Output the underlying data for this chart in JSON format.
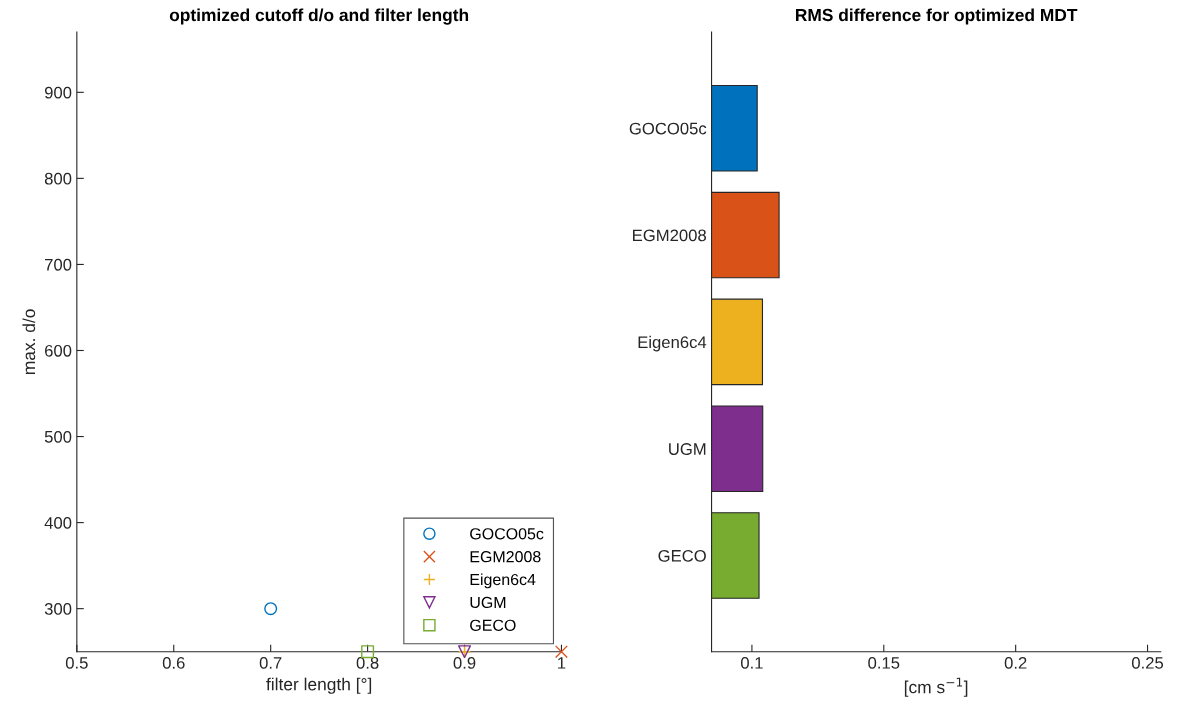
{
  "chart_data": [
    {
      "type": "scatter",
      "title": "optimized cutoff d/o and filter length",
      "xlabel": "filter length [°]",
      "ylabel": "max. d/o",
      "series": [
        {
          "name": "GOCO05c",
          "color": "#0072bd",
          "marker": "circle",
          "x": [
            0.7
          ],
          "values": [
            300
          ]
        },
        {
          "name": "EGM2008",
          "color": "#d95319",
          "marker": "cross",
          "x": [
            1
          ],
          "values": [
            250
          ]
        },
        {
          "name": "Eigen6c4",
          "color": "#edb120",
          "marker": "plus",
          "x": [
            0.9
          ],
          "values": [
            250
          ]
        },
        {
          "name": "UGM",
          "color": "#7e2f8e",
          "marker": "triangle",
          "x": [
            0.9
          ],
          "values": [
            250
          ]
        },
        {
          "name": "GECO",
          "color": "#77ac30",
          "marker": "square",
          "x": [
            0.8
          ],
          "values": [
            250
          ]
        }
      ],
      "xlim": [
        0.5,
        1
      ],
      "xticks": [
        0.5,
        0.6,
        0.7,
        0.8,
        0.9,
        1
      ],
      "ylim": [
        250,
        970
      ],
      "yticks": [
        300,
        400,
        500,
        600,
        700,
        800,
        900
      ],
      "legend": "bottom right",
      "grid": false
    },
    {
      "type": "bar",
      "orientation": "horizontal",
      "title": "RMS difference for optimized MDT",
      "xlabel": "[cm s$^{−1}$]",
      "categories": [
        "GOCO05c",
        "EGM2008",
        "Eigen6c4",
        "UGM",
        "GECO"
      ],
      "values": [
        0.102,
        0.1103,
        0.104,
        0.1041,
        0.1027
      ],
      "colors": [
        "#0072bd",
        "#d95319",
        "#edb120",
        "#7e2f8e",
        "#77ac30"
      ],
      "xlim": [
        0.0847,
        0.255
      ],
      "xticks": [
        0.1,
        0.15,
        0.2,
        0.25
      ],
      "grid": false
    }
  ]
}
